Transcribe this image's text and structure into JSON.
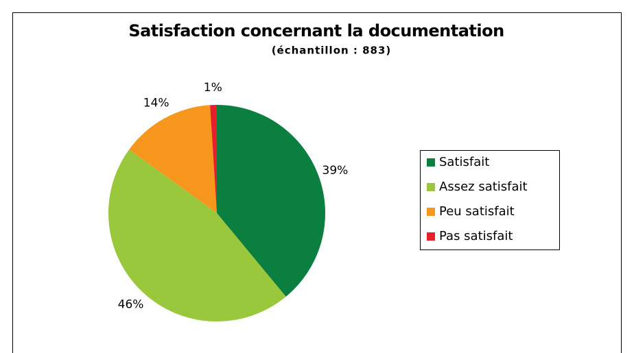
{
  "chart_data": {
    "type": "pie",
    "title": "Satisfaction concernant la documentation",
    "subtitle": "(échantillon : 883)",
    "categories": [
      "Satisfait",
      "Assez satisfait",
      "Peu satisfait",
      "Pas satisfait"
    ],
    "values": [
      39,
      46,
      14,
      1
    ],
    "value_labels": [
      "39%",
      "46%",
      "14%",
      "1%"
    ],
    "colors": [
      "#0b7f3f",
      "#9ac83c",
      "#f7961d",
      "#e6202a"
    ],
    "legend": "right"
  }
}
